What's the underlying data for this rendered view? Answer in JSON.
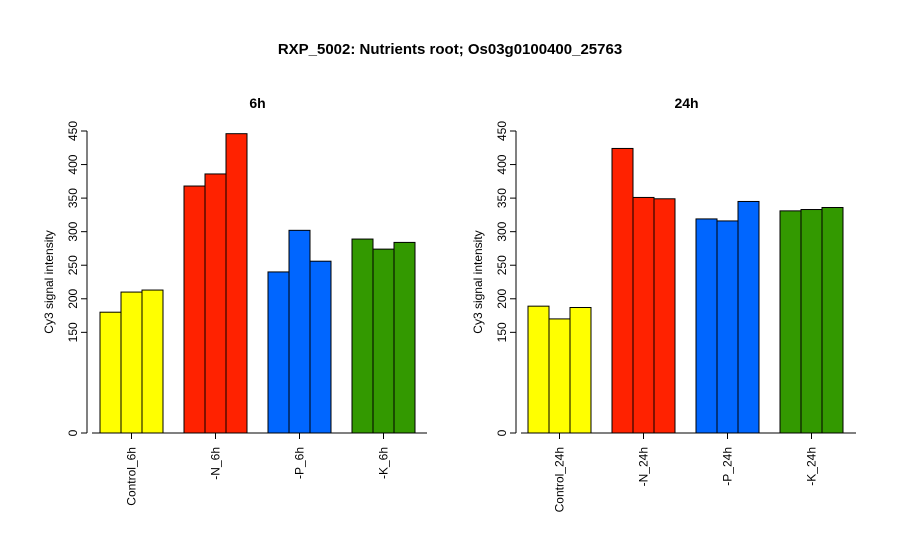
{
  "figure": {
    "title": "RXP_5002: Nutrients root; Os03g0100400_25763"
  },
  "chart_data": [
    {
      "type": "bar",
      "title": "6h",
      "ylabel": "Cy3 signal intensity",
      "xlabel": "",
      "ylim": [
        0,
        450
      ],
      "yticks": [
        0,
        150,
        200,
        250,
        300,
        350,
        400,
        450
      ],
      "axis_break": "between 0 and 150 (tick labels jump from 0 to 150)",
      "categories": [
        "Control_6h",
        "-N_6h",
        "-P_6h",
        "-K_6h"
      ],
      "group_colors": [
        "#ffff00",
        "#ff2200",
        "#0066ff",
        "#339900"
      ],
      "replicates_per_group": 3,
      "values": [
        [
          180,
          210,
          213
        ],
        [
          368,
          386,
          446
        ],
        [
          240,
          302,
          256
        ],
        [
          289,
          274,
          284
        ]
      ],
      "grid": false,
      "legend": "none"
    },
    {
      "type": "bar",
      "title": "24h",
      "ylabel": "Cy3 signal intensity",
      "xlabel": "",
      "ylim": [
        0,
        450
      ],
      "yticks": [
        0,
        150,
        200,
        250,
        300,
        350,
        400,
        450
      ],
      "axis_break": "between 0 and 150 (tick labels jump from 0 to 150)",
      "categories": [
        "Control_24h",
        "-N_24h",
        "-P_24h",
        "-K_24h"
      ],
      "group_colors": [
        "#ffff00",
        "#ff2200",
        "#0066ff",
        "#339900"
      ],
      "replicates_per_group": 3,
      "values": [
        [
          189,
          170,
          187
        ],
        [
          424,
          351,
          349
        ],
        [
          319,
          316,
          345
        ],
        [
          331,
          333,
          336
        ]
      ],
      "grid": false,
      "legend": "none"
    }
  ]
}
